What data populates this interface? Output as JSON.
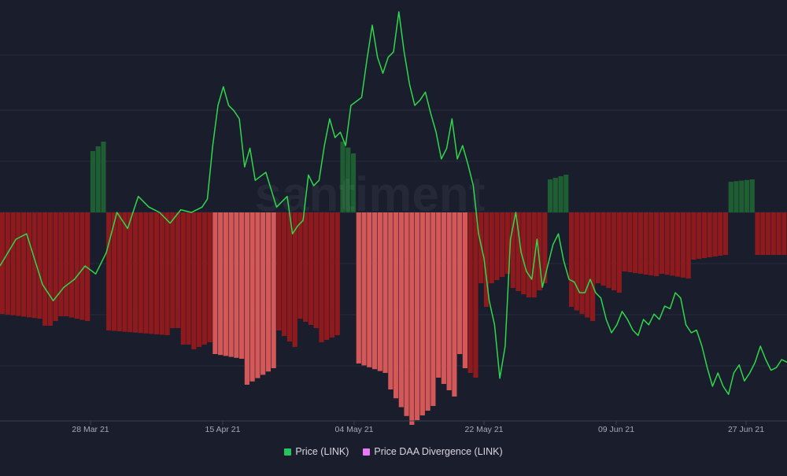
{
  "chart_data": {
    "type": "bar",
    "watermark": "santiment",
    "x_ticks": [
      "28 Mar 21",
      "15 Apr 21",
      "04 May 21",
      "22 May 21",
      "09 Jun 21",
      "27 Jun 21"
    ],
    "legend": [
      {
        "label": "Price (LINK)",
        "color": "#22c55e"
      },
      {
        "label": "Price DAA Divergence (LINK)",
        "color": "#e879f9"
      }
    ],
    "colors": {
      "background": "#1a1d2c",
      "positive": "#1e5e32",
      "negative_strong": "#d45858",
      "negative": "#8e1a1e",
      "price_line": "#2fd84a"
    },
    "series": [
      {
        "name": "Price DAA Divergence (LINK)",
        "segments": [
          {
            "start": 0,
            "end": 8,
            "v0": -43,
            "v1": -45,
            "tone": "negative"
          },
          {
            "start": 8,
            "end": 10,
            "v0": -48,
            "v1": -48,
            "tone": "negative"
          },
          {
            "start": 10,
            "end": 12,
            "v0": -46,
            "v1": -44,
            "tone": "negative"
          },
          {
            "start": 12,
            "end": 17,
            "v0": -44,
            "v1": -46,
            "tone": "negative"
          },
          {
            "start": 17,
            "end": 20,
            "v0": 26,
            "v1": 30,
            "tone": "positive"
          },
          {
            "start": 20,
            "end": 32,
            "v0": -50,
            "v1": -52,
            "tone": "negative"
          },
          {
            "start": 32,
            "end": 34,
            "v0": -49,
            "v1": -49,
            "tone": "negative"
          },
          {
            "start": 34,
            "end": 36,
            "v0": -56,
            "v1": -56,
            "tone": "negative"
          },
          {
            "start": 36,
            "end": 40,
            "v0": -58,
            "v1": -55,
            "tone": "negative"
          },
          {
            "start": 40,
            "end": 46,
            "v0": -60,
            "v1": -62,
            "tone": "negative_strong"
          },
          {
            "start": 46,
            "end": 52,
            "v0": -73,
            "v1": -66,
            "tone": "negative_strong"
          },
          {
            "start": 52,
            "end": 56,
            "v0": -50,
            "v1": -57,
            "tone": "negative"
          },
          {
            "start": 56,
            "end": 60,
            "v0": -45,
            "v1": -49,
            "tone": "negative"
          },
          {
            "start": 60,
            "end": 64,
            "v0": -55,
            "v1": -52,
            "tone": "negative"
          },
          {
            "start": 64,
            "end": 67,
            "v0": 30,
            "v1": 25,
            "tone": "positive"
          },
          {
            "start": 67,
            "end": 73,
            "v0": -64,
            "v1": -68,
            "tone": "negative_strong"
          },
          {
            "start": 73,
            "end": 78,
            "v0": -75,
            "v1": -90,
            "tone": "negative_strong"
          },
          {
            "start": 78,
            "end": 82,
            "v0": -88,
            "v1": -82,
            "tone": "negative_strong"
          },
          {
            "start": 82,
            "end": 86,
            "v0": -70,
            "v1": -78,
            "tone": "negative_strong"
          },
          {
            "start": 86,
            "end": 88,
            "v0": -60,
            "v1": -66,
            "tone": "negative_strong"
          },
          {
            "start": 88,
            "end": 90,
            "v0": -68,
            "v1": -70,
            "tone": "negative"
          },
          {
            "start": 90,
            "end": 92,
            "v0": -30,
            "v1": -40,
            "tone": "negative"
          },
          {
            "start": 92,
            "end": 96,
            "v0": -30,
            "v1": -26,
            "tone": "negative"
          },
          {
            "start": 96,
            "end": 100,
            "v0": -32,
            "v1": -36,
            "tone": "negative"
          },
          {
            "start": 100,
            "end": 103,
            "v0": -36,
            "v1": -30,
            "tone": "negative"
          },
          {
            "start": 103,
            "end": 107,
            "v0": 14,
            "v1": 16,
            "tone": "positive"
          },
          {
            "start": 107,
            "end": 112,
            "v0": -40,
            "v1": -46,
            "tone": "negative"
          },
          {
            "start": 112,
            "end": 117,
            "v0": -30,
            "v1": -34,
            "tone": "negative"
          },
          {
            "start": 117,
            "end": 124,
            "v0": -25,
            "v1": -27,
            "tone": "negative"
          },
          {
            "start": 124,
            "end": 130,
            "v0": -26,
            "v1": -28,
            "tone": "negative"
          },
          {
            "start": 130,
            "end": 137,
            "v0": -20,
            "v1": -18,
            "tone": "negative"
          },
          {
            "start": 137,
            "end": 142,
            "v0": 13,
            "v1": 14,
            "tone": "positive"
          },
          {
            "start": 142,
            "end": 148,
            "v0": -18,
            "v1": -18,
            "tone": "negative"
          }
        ]
      },
      {
        "name": "Price (LINK)",
        "points": [
          [
            0,
            -20
          ],
          [
            3,
            -10
          ],
          [
            5,
            -8
          ],
          [
            8,
            -27
          ],
          [
            10,
            -33
          ],
          [
            12,
            -28
          ],
          [
            14,
            -25
          ],
          [
            16,
            -20
          ],
          [
            18,
            -23
          ],
          [
            20,
            -15
          ],
          [
            22,
            0
          ],
          [
            24,
            -6
          ],
          [
            26,
            6
          ],
          [
            28,
            2
          ],
          [
            30,
            0
          ],
          [
            32,
            -4
          ],
          [
            34,
            1
          ],
          [
            36,
            0
          ],
          [
            38,
            2
          ],
          [
            39,
            5
          ],
          [
            40,
            25
          ],
          [
            41,
            40
          ],
          [
            42,
            47
          ],
          [
            43,
            40
          ],
          [
            44,
            38
          ],
          [
            45,
            35
          ],
          [
            46,
            17
          ],
          [
            47,
            24
          ],
          [
            48,
            12
          ],
          [
            50,
            15
          ],
          [
            52,
            2
          ],
          [
            54,
            6
          ],
          [
            55,
            -8
          ],
          [
            56,
            -5
          ],
          [
            57,
            -3
          ],
          [
            58,
            14
          ],
          [
            59,
            10
          ],
          [
            60,
            12
          ],
          [
            61,
            25
          ],
          [
            62,
            35
          ],
          [
            63,
            28
          ],
          [
            64,
            30
          ],
          [
            65,
            25
          ],
          [
            66,
            40
          ],
          [
            68,
            43
          ],
          [
            69,
            57
          ],
          [
            70,
            70
          ],
          [
            71,
            58
          ],
          [
            72,
            52
          ],
          [
            73,
            58
          ],
          [
            74,
            60
          ],
          [
            75,
            75
          ],
          [
            76,
            60
          ],
          [
            77,
            48
          ],
          [
            78,
            40
          ],
          [
            79,
            42
          ],
          [
            80,
            45
          ],
          [
            81,
            37
          ],
          [
            82,
            30
          ],
          [
            83,
            20
          ],
          [
            84,
            24
          ],
          [
            85,
            35
          ],
          [
            86,
            20
          ],
          [
            87,
            25
          ],
          [
            88,
            18
          ],
          [
            89,
            10
          ],
          [
            90,
            -8
          ],
          [
            91,
            -17
          ],
          [
            92,
            -33
          ],
          [
            93,
            -42
          ],
          [
            94,
            -62
          ],
          [
            95,
            -50
          ],
          [
            96,
            -10
          ],
          [
            97,
            0
          ],
          [
            98,
            -15
          ],
          [
            99,
            -22
          ],
          [
            100,
            -25
          ],
          [
            101,
            -10
          ],
          [
            102,
            -28
          ],
          [
            103,
            -20
          ],
          [
            104,
            -12
          ],
          [
            105,
            -8
          ],
          [
            106,
            -18
          ],
          [
            107,
            -25
          ],
          [
            108,
            -26
          ],
          [
            109,
            -30
          ],
          [
            110,
            -30
          ],
          [
            111,
            -25
          ],
          [
            112,
            -30
          ],
          [
            113,
            -32
          ],
          [
            114,
            -40
          ],
          [
            115,
            -45
          ],
          [
            116,
            -42
          ],
          [
            117,
            -37
          ],
          [
            118,
            -40
          ],
          [
            119,
            -44
          ],
          [
            120,
            -46
          ],
          [
            121,
            -40
          ],
          [
            122,
            -42
          ],
          [
            123,
            -38
          ],
          [
            124,
            -40
          ],
          [
            125,
            -35
          ],
          [
            126,
            -36
          ],
          [
            127,
            -30
          ],
          [
            128,
            -32
          ],
          [
            129,
            -42
          ],
          [
            130,
            -45
          ],
          [
            131,
            -44
          ],
          [
            132,
            -50
          ],
          [
            133,
            -58
          ],
          [
            134,
            -65
          ],
          [
            135,
            -60
          ],
          [
            136,
            -65
          ],
          [
            137,
            -68
          ],
          [
            138,
            -60
          ],
          [
            139,
            -57
          ],
          [
            140,
            -63
          ],
          [
            141,
            -60
          ],
          [
            142,
            -56
          ],
          [
            143,
            -50
          ],
          [
            144,
            -55
          ],
          [
            145,
            -59
          ],
          [
            146,
            -58
          ],
          [
            147,
            -55
          ],
          [
            148,
            -56
          ]
        ]
      }
    ]
  }
}
